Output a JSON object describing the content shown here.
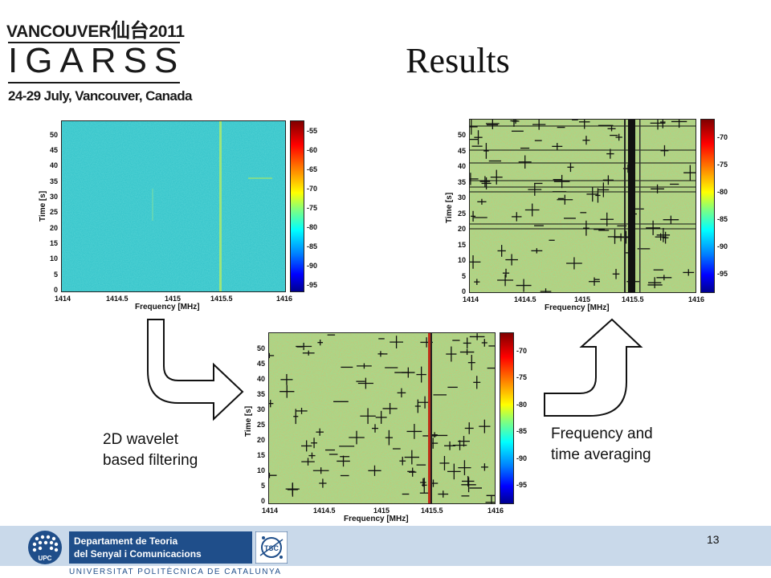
{
  "logo": {
    "line1_a": "VANCOUVER",
    "line1_cjk": "仙台",
    "line1_b": "2011",
    "line2": "IGARSS",
    "line3": "24-29 July, Vancouver, Canada"
  },
  "title": "Results",
  "axes": {
    "ylabel": "Time [s]",
    "xlabel": "Frequency [MHz]",
    "xticks": [
      "1414",
      "1414.5",
      "1415",
      "1415.5",
      "1416"
    ],
    "yticks": [
      "50",
      "45",
      "40",
      "35",
      "30",
      "25",
      "20",
      "15",
      "10",
      "5",
      "0"
    ]
  },
  "plots": {
    "raw": {
      "cbar_ticks": [
        "-55",
        "-60",
        "-65",
        "-70",
        "-75",
        "-80",
        "-85",
        "-90",
        "-95"
      ]
    },
    "filtered": {
      "cbar_ticks": [
        "-70",
        "-75",
        "-80",
        "-85",
        "-90",
        "-95"
      ]
    },
    "averaged": {
      "cbar_ticks": [
        "-70",
        "-75",
        "-80",
        "-85",
        "-90",
        "-95"
      ]
    }
  },
  "captions": {
    "wavelet": "2D wavelet\nbased filtering",
    "averaging": "Frequency and\ntime averaging"
  },
  "footer": {
    "dept_line1": "Departament de Teoria",
    "dept_line2": "del Senyal i Comunicacions",
    "upc": "UPC",
    "tsc": "TSC",
    "university": "UNIVERSITAT POLITÈCNICA DE CATALUNYA",
    "page_number": "13"
  }
}
